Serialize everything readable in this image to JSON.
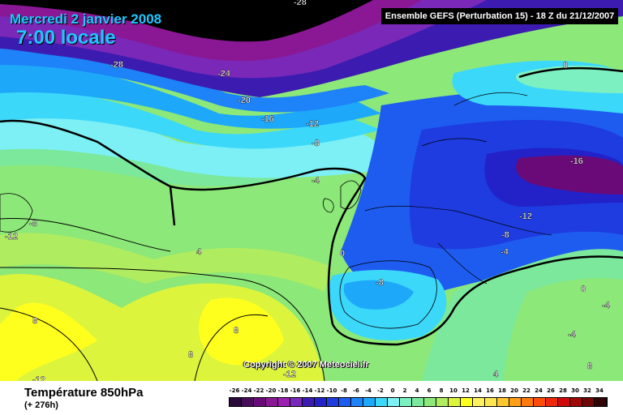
{
  "header": {
    "date": "Mercredi 2 janvier 2008",
    "time": "7:00 locale",
    "model": "Ensemble GEFS (Perturbation 15)  -  18 Z du 21/12/2007"
  },
  "footer": {
    "parameter": "Température 850hPa",
    "horizon": "(+ 276h)",
    "copyright": "Copyright © 2007 Meteociel.fr"
  },
  "legend": {
    "labels": [
      "-26",
      "-24",
      "-22",
      "-20",
      "-18",
      "-16",
      "-14",
      "-12",
      "-10",
      "-8",
      "-6",
      "-4",
      "-2",
      "0",
      "2",
      "4",
      "6",
      "8",
      "10",
      "12",
      "14",
      "16",
      "18",
      "20",
      "22",
      "24",
      "26",
      "28",
      "30",
      "32",
      "34"
    ],
    "colors": [
      "#2a0a3a",
      "#4a0c5a",
      "#6a0a78",
      "#8a1894",
      "#9c1eb2",
      "#7a28b8",
      "#3c1cb0",
      "#2222c8",
      "#1e3ce0",
      "#1e5cf0",
      "#1e82f8",
      "#1ea8fa",
      "#3cd8fa",
      "#7cf0f4",
      "#7cf0c0",
      "#7ce89c",
      "#8ce878",
      "#b0ec60",
      "#dcf43c",
      "#ffff1e",
      "#fff060",
      "#ffe64e",
      "#ffc830",
      "#ffa014",
      "#ff7a0a",
      "#ff4c08",
      "#f0280a",
      "#d00a0a",
      "#a00808",
      "#700606",
      "#300404"
    ]
  },
  "map_labels": [
    {
      "text": "-28",
      "color": "#ffffff"
    },
    {
      "text": "-28",
      "color": "#ffffff"
    },
    {
      "text": "-24",
      "color": "#ffffff"
    },
    {
      "text": "-20",
      "color": "#ffffff"
    },
    {
      "text": "-16",
      "color": "#ffffff"
    },
    {
      "text": "-12",
      "color": "#ffffff"
    },
    {
      "text": "-8",
      "color": "#ffffff"
    },
    {
      "text": "-4",
      "color": "#ffffff"
    },
    {
      "text": "0",
      "color": "#ffffff"
    },
    {
      "text": "-16",
      "color": "#ffffff"
    },
    {
      "text": "-12",
      "color": "#ffffff"
    },
    {
      "text": "-8",
      "color": "#ffffff"
    },
    {
      "text": "-4",
      "color": "#ffffff"
    },
    {
      "text": "0",
      "color": "#ffffff"
    },
    {
      "text": "-8",
      "color": "#ffffff"
    },
    {
      "text": "-4",
      "color": "#ffffff"
    },
    {
      "text": "0",
      "color": "#ffffff"
    },
    {
      "text": "-4",
      "color": "#ffffff"
    },
    {
      "text": "-8",
      "color": "#ffffff"
    },
    {
      "text": "-12",
      "color": "#ffffff"
    },
    {
      "text": "4",
      "color": "#ffffff"
    },
    {
      "text": "8",
      "color": "#ffffff"
    },
    {
      "text": "8",
      "color": "#ffffff"
    },
    {
      "text": "8",
      "color": "#ffffff"
    },
    {
      "text": "-12",
      "color": "#ffffff"
    },
    {
      "text": "-12",
      "color": "#ffffff"
    },
    {
      "text": "4",
      "color": "#ffffff"
    },
    {
      "text": "8",
      "color": "#ffffff"
    }
  ]
}
